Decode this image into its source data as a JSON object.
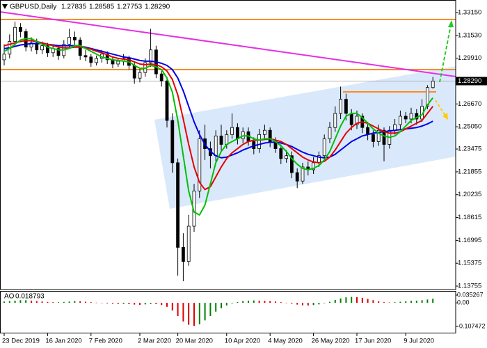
{
  "chart_data": [
    {
      "type": "candlestick",
      "title": "GBPUSD,Daily",
      "quote": [
        1.27835,
        1.28585,
        1.27753,
        {
          "value": 1.2829,
          "label": "1.28290"
        }
      ],
      "last_price": {
        "value": 1.2829,
        "label": "1.28290"
      },
      "categories": [
        "23 Dec 2019",
        null,
        null,
        null,
        null,
        null,
        null,
        null,
        "16 Jan 2020",
        null,
        null,
        null,
        null,
        null,
        null,
        null,
        "7 Feb 2020",
        null,
        null,
        null,
        null,
        null,
        null,
        null,
        null,
        "2 Mar 2020",
        null,
        null,
        null,
        null,
        null,
        null,
        "20 Mar 2020",
        null,
        null,
        null,
        null,
        null,
        null,
        null,
        null,
        "10 Apr 2020",
        null,
        null,
        null,
        null,
        null,
        null,
        null,
        "4 May 2020",
        null,
        null,
        null,
        null,
        null,
        null,
        null,
        "26 May 2020",
        null,
        null,
        null,
        null,
        null,
        null,
        null,
        "17 Jun 2020",
        null,
        null,
        null,
        null,
        null,
        null,
        null,
        null,
        "9 Jul 2020",
        null,
        null,
        null,
        null,
        null
      ],
      "open": [
        1.298,
        1.302,
        1.311,
        1.321,
        1.318,
        1.307,
        1.31,
        1.305,
        1.308,
        1.303,
        1.306,
        1.301,
        1.309,
        1.314,
        1.312,
        1.301,
        1.3,
        1.296,
        1.299,
        1.302,
        1.298,
        1.295,
        1.297,
        1.299,
        1.294,
        1.285,
        1.289,
        1.296,
        1.305,
        1.288,
        1.283,
        1.255,
        1.225,
        1.165,
        1.155,
        1.18,
        1.205,
        1.242,
        1.235,
        1.23,
        1.244,
        1.238,
        1.245,
        1.25,
        1.242,
        1.247,
        1.24,
        1.235,
        1.245,
        1.248,
        1.24,
        1.235,
        1.228,
        1.23,
        1.218,
        1.212,
        1.222,
        1.22,
        1.225,
        1.23,
        1.242,
        1.25,
        1.26,
        1.27,
        1.26,
        1.252,
        1.258,
        1.25,
        1.245,
        1.24,
        1.248,
        1.238,
        1.248,
        1.252,
        1.258,
        1.256,
        1.26,
        1.256,
        1.265,
        1.27835
      ],
      "high": [
        1.309,
        1.316,
        1.325,
        1.324,
        1.32,
        1.314,
        1.313,
        1.311,
        1.31,
        1.309,
        1.308,
        1.312,
        1.32,
        1.318,
        1.314,
        1.305,
        1.302,
        1.301,
        1.305,
        1.304,
        1.3,
        1.299,
        1.302,
        1.301,
        1.296,
        1.292,
        1.299,
        1.32,
        1.308,
        1.29,
        1.286,
        1.26,
        1.228,
        1.175,
        1.188,
        1.21,
        1.248,
        1.252,
        1.24,
        1.248,
        1.252,
        1.248,
        1.26,
        1.253,
        1.25,
        1.25,
        1.243,
        1.249,
        1.252,
        1.25,
        1.243,
        1.238,
        1.234,
        1.233,
        1.221,
        1.225,
        1.226,
        1.229,
        1.233,
        1.245,
        1.254,
        1.265,
        1.279,
        1.274,
        1.263,
        1.262,
        1.26,
        1.254,
        1.248,
        1.252,
        1.25,
        1.251,
        1.256,
        1.262,
        1.261,
        1.264,
        1.263,
        1.27,
        1.28,
        1.28585
      ],
      "low": [
        1.294,
        1.299,
        1.308,
        1.314,
        1.304,
        1.304,
        1.302,
        1.302,
        1.3,
        1.3,
        1.298,
        1.299,
        1.306,
        1.308,
        1.298,
        1.297,
        1.293,
        1.294,
        1.296,
        1.295,
        1.292,
        1.293,
        1.294,
        1.291,
        1.281,
        1.282,
        1.286,
        1.293,
        1.285,
        1.279,
        1.25,
        1.218,
        1.145,
        1.141,
        1.152,
        1.176,
        1.2,
        1.227,
        1.221,
        1.226,
        1.233,
        1.235,
        1.242,
        1.238,
        1.239,
        1.237,
        1.231,
        1.232,
        1.242,
        1.236,
        1.232,
        1.224,
        1.225,
        1.214,
        1.207,
        1.21,
        1.216,
        1.217,
        1.222,
        1.227,
        1.239,
        1.247,
        1.256,
        1.255,
        1.248,
        1.249,
        1.246,
        1.241,
        1.236,
        1.237,
        1.226,
        1.235,
        1.245,
        1.249,
        1.253,
        1.253,
        1.252,
        1.254,
        1.263,
        1.27753
      ],
      "close": [
        1.302,
        1.311,
        1.321,
        1.318,
        1.307,
        1.31,
        1.305,
        1.308,
        1.303,
        1.306,
        1.301,
        1.309,
        1.314,
        1.312,
        1.301,
        1.3,
        1.296,
        1.299,
        1.302,
        1.298,
        1.295,
        1.297,
        1.299,
        1.294,
        1.285,
        1.289,
        1.296,
        1.305,
        1.288,
        1.283,
        1.255,
        1.225,
        1.165,
        1.155,
        1.18,
        1.205,
        1.242,
        1.235,
        1.23,
        1.244,
        1.238,
        1.245,
        1.25,
        1.242,
        1.247,
        1.24,
        1.235,
        1.245,
        1.248,
        1.24,
        1.235,
        1.228,
        1.23,
        1.218,
        1.212,
        1.222,
        1.22,
        1.225,
        1.23,
        1.242,
        1.25,
        1.26,
        1.27,
        1.26,
        1.252,
        1.258,
        1.25,
        1.245,
        1.24,
        1.248,
        1.238,
        1.248,
        1.252,
        1.258,
        1.256,
        1.26,
        1.256,
        1.265,
        1.27835,
        1.2829
      ],
      "candle_color": "#000000",
      "bull_fill": "#ffffff",
      "bear_fill": "#000000",
      "overlays": [
        {
          "color": "#0000e6",
          "values": [
            1.306,
            1.3065,
            1.3075,
            1.3085,
            1.309,
            1.3095,
            1.3095,
            1.3095,
            1.309,
            1.3085,
            1.308,
            1.308,
            1.308,
            1.308,
            1.3075,
            1.307,
            1.306,
            1.305,
            1.304,
            1.303,
            1.302,
            1.301,
            1.3,
            1.2995,
            1.2985,
            1.2975,
            1.297,
            1.297,
            1.2965,
            1.2955,
            1.294,
            1.291,
            1.285,
            1.276,
            1.265,
            1.254,
            1.245,
            1.238,
            1.233,
            1.23,
            1.2285,
            1.229,
            1.2305,
            1.232,
            1.234,
            1.2355,
            1.237,
            1.238,
            1.239,
            1.2395,
            1.2395,
            1.239,
            1.238,
            1.2365,
            1.2345,
            1.2325,
            1.231,
            1.23,
            1.229,
            1.2285,
            1.229,
            1.231,
            1.234,
            1.237,
            1.24,
            1.242,
            1.244,
            1.245,
            1.246,
            1.2465,
            1.247,
            1.2475,
            1.248,
            1.2485,
            1.249,
            1.2495,
            1.25,
            1.251,
            1.2525,
            1.2545
          ]
        },
        {
          "color": "#e60000",
          "values": [
            1.308,
            1.309,
            1.31,
            1.311,
            1.3115,
            1.3115,
            1.311,
            1.31,
            1.309,
            1.308,
            1.307,
            1.3065,
            1.3065,
            1.307,
            1.307,
            1.3065,
            1.3055,
            1.304,
            1.303,
            1.3015,
            1.3,
            1.299,
            1.2985,
            1.298,
            1.2965,
            1.295,
            1.2945,
            1.295,
            1.2945,
            1.293,
            1.29,
            1.284,
            1.273,
            1.256,
            1.238,
            1.222,
            1.211,
            1.206,
            1.208,
            1.215,
            1.222,
            1.228,
            1.232,
            1.235,
            1.238,
            1.24,
            1.241,
            1.241,
            1.2415,
            1.242,
            1.241,
            1.24,
            1.238,
            1.235,
            1.232,
            1.229,
            1.227,
            1.2255,
            1.225,
            1.226,
            1.229,
            1.234,
            1.24,
            1.246,
            1.25,
            1.253,
            1.254,
            1.253,
            1.251,
            1.249,
            1.247,
            1.246,
            1.246,
            1.247,
            1.249,
            1.251,
            1.253,
            1.255,
            1.26,
            1.265
          ]
        },
        {
          "color": "#00c000",
          "values": [
            1.304,
            1.306,
            1.309,
            1.312,
            1.313,
            1.313,
            1.311,
            1.309,
            1.307,
            1.306,
            1.305,
            1.305,
            1.306,
            1.308,
            1.308,
            1.306,
            1.304,
            1.302,
            1.3,
            1.299,
            1.298,
            1.2975,
            1.297,
            1.2965,
            1.294,
            1.292,
            1.292,
            1.294,
            1.293,
            1.291,
            1.285,
            1.275,
            1.255,
            1.23,
            1.205,
            1.19,
            1.188,
            1.195,
            1.21,
            1.225,
            1.233,
            1.238,
            1.24,
            1.242,
            1.244,
            1.244,
            1.242,
            1.241,
            1.242,
            1.242,
            1.24,
            1.237,
            1.233,
            1.228,
            1.224,
            1.221,
            1.22,
            1.221,
            1.223,
            1.227,
            1.233,
            1.242,
            1.251,
            1.258,
            1.26,
            1.26,
            1.257,
            1.253,
            1.249,
            1.246,
            1.244,
            1.243,
            1.244,
            1.247,
            1.251,
            1.255,
            1.257,
            1.259,
            1.266,
            1.271
          ]
        }
      ],
      "ylim": [
        1.1351,
        1.3399
      ],
      "yticks": [
        {
          "value": 1.3315,
          "label": "1.33150"
        },
        {
          "value": 1.3153,
          "label": "1.31530"
        },
        {
          "value": 1.2991,
          "label": "1.29910"
        },
        {
          "value": 1.2667,
          "label": "1.26670"
        },
        {
          "value": 1.2505,
          "label": "1.25050"
        },
        1.23475,
        1.21855,
        1.20235,
        1.18615,
        1.16995,
        1.15375,
        1.13755
      ],
      "grid": false
    },
    {
      "type": "bar",
      "title": "AO",
      "values": [
        0.006,
        0.008,
        0.01,
        0.012,
        0.012,
        0.01,
        0.008,
        0.006,
        0.004,
        0.003,
        0.003,
        0.004,
        0.006,
        0.008,
        0.007,
        0.005,
        0.003,
        0.001,
        -0.001,
        -0.003,
        -0.004,
        -0.005,
        -0.005,
        -0.006,
        -0.008,
        -0.009,
        -0.007,
        -0.005,
        -0.006,
        -0.01,
        -0.018,
        -0.035,
        -0.06,
        -0.085,
        -0.1,
        -0.105,
        -0.098,
        -0.08,
        -0.06,
        -0.04,
        -0.025,
        -0.012,
        -0.003,
        0.004,
        0.008,
        0.01,
        0.011,
        0.01,
        0.009,
        0.008,
        0.006,
        0.003,
        0.0,
        -0.004,
        -0.008,
        -0.011,
        -0.012,
        -0.01,
        -0.007,
        -0.002,
        0.005,
        0.013,
        0.02,
        0.025,
        0.027,
        0.026,
        0.023,
        0.018,
        0.012,
        0.007,
        0.003,
        0.002,
        0.003,
        0.005,
        0.007,
        0.009,
        0.01,
        0.012,
        0.015,
        0.018793
      ],
      "up_color": "#008000",
      "down_color": "#e00000",
      "ylim": [
        -0.1392,
        0.0511
      ],
      "yticks": [
        0.035267,
        {
          "value": 0,
          "label": "0.00"
        },
        -0.107472
      ],
      "grid": false
    }
  ]
}
